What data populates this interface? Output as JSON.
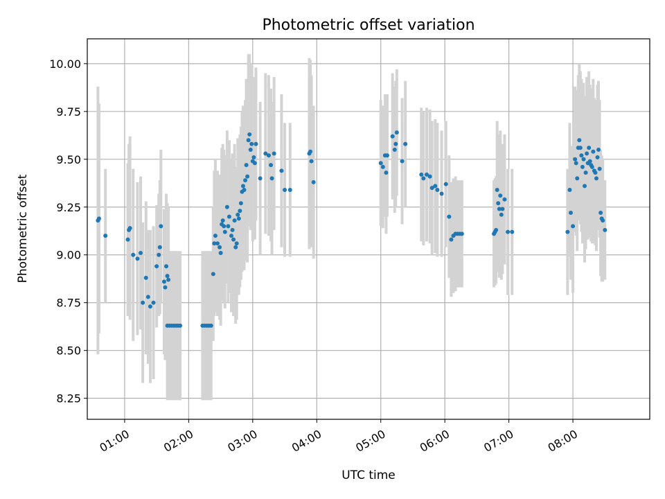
{
  "chart_data": {
    "type": "scatter",
    "title": "Photometric offset variation",
    "xlabel": "UTC time",
    "ylabel": "Photometric offset",
    "x_unit": "UTC time (HH:MM)",
    "xlim": [
      "00:25",
      "09:12"
    ],
    "ylim": [
      8.14,
      10.13
    ],
    "grid": true,
    "x_ticks": [
      "01:00",
      "02:00",
      "03:00",
      "04:00",
      "05:00",
      "06:00",
      "07:00",
      "08:00"
    ],
    "y_ticks": [
      "8.25",
      "8.50",
      "8.75",
      "9.00",
      "9.25",
      "9.50",
      "9.75",
      "10.00"
    ],
    "colors": {
      "points": "#1f77b4",
      "errorbars": "#d3d3d3",
      "grid": "#b0b0b0"
    },
    "series": [
      {
        "points": [
          {
            "x": "00:35",
            "y": 9.18,
            "err": 0.7
          },
          {
            "x": "00:36",
            "y": 9.19,
            "err": 0.6
          },
          {
            "x": "00:42",
            "y": 9.1,
            "err": 0.35
          },
          {
            "x": "01:03",
            "y": 9.08,
            "err": 0.4
          },
          {
            "x": "01:04",
            "y": 9.13,
            "err": 0.45
          },
          {
            "x": "01:05",
            "y": 9.14,
            "err": 0.48
          },
          {
            "x": "01:08",
            "y": 9.0,
            "err": 0.45
          },
          {
            "x": "01:12",
            "y": 8.98,
            "err": 0.4
          },
          {
            "x": "01:15",
            "y": 9.01,
            "err": 0.4
          },
          {
            "x": "01:17",
            "y": 8.75,
            "err": 0.42
          },
          {
            "x": "01:20",
            "y": 8.88,
            "err": 0.4
          },
          {
            "x": "01:22",
            "y": 8.78,
            "err": 0.35
          },
          {
            "x": "01:24",
            "y": 8.73,
            "err": 0.4
          },
          {
            "x": "01:27",
            "y": 8.75,
            "err": 0.4
          },
          {
            "x": "01:30",
            "y": 8.94,
            "err": 0.32
          },
          {
            "x": "01:32",
            "y": 9.0,
            "err": 0.32
          },
          {
            "x": "01:33",
            "y": 9.04,
            "err": 0.35
          },
          {
            "x": "01:34",
            "y": 9.15,
            "err": 0.4
          },
          {
            "x": "01:37",
            "y": 8.86,
            "err": 0.38
          },
          {
            "x": "01:38",
            "y": 8.83,
            "err": 0.38
          },
          {
            "x": "01:39",
            "y": 8.94,
            "err": 0.38
          },
          {
            "x": "01:40",
            "y": 8.89,
            "err": 0.38
          },
          {
            "x": "01:41",
            "y": 8.87,
            "err": 0.38
          },
          {
            "x": "01:40",
            "y": 8.63,
            "err": 0.39
          },
          {
            "x": "01:42",
            "y": 8.63,
            "err": 0.39
          },
          {
            "x": "01:44",
            "y": 8.63,
            "err": 0.39
          },
          {
            "x": "01:46",
            "y": 8.63,
            "err": 0.39
          },
          {
            "x": "01:48",
            "y": 8.63,
            "err": 0.39
          },
          {
            "x": "01:50",
            "y": 8.63,
            "err": 0.39
          },
          {
            "x": "01:52",
            "y": 8.63,
            "err": 0.39
          },
          {
            "x": "02:13",
            "y": 8.63,
            "err": 0.39
          },
          {
            "x": "02:15",
            "y": 8.63,
            "err": 0.39
          },
          {
            "x": "02:17",
            "y": 8.63,
            "err": 0.39
          },
          {
            "x": "02:19",
            "y": 8.63,
            "err": 0.39
          },
          {
            "x": "02:21",
            "y": 8.63,
            "err": 0.39
          },
          {
            "x": "02:23",
            "y": 8.9,
            "err": 0.35
          },
          {
            "x": "02:24",
            "y": 9.06,
            "err": 0.38
          },
          {
            "x": "02:25",
            "y": 9.1,
            "err": 0.4
          },
          {
            "x": "02:27",
            "y": 9.06,
            "err": 0.38
          },
          {
            "x": "02:29",
            "y": 9.04,
            "err": 0.38
          },
          {
            "x": "02:30",
            "y": 9.01,
            "err": 0.38
          },
          {
            "x": "02:31",
            "y": 9.16,
            "err": 0.4
          },
          {
            "x": "02:32",
            "y": 9.18,
            "err": 0.4
          },
          {
            "x": "02:33",
            "y": 9.15,
            "err": 0.4
          },
          {
            "x": "02:34",
            "y": 9.12,
            "err": 0.4
          },
          {
            "x": "02:36",
            "y": 9.25,
            "err": 0.4
          },
          {
            "x": "02:37",
            "y": 9.15,
            "err": 0.4
          },
          {
            "x": "02:38",
            "y": 9.2,
            "err": 0.4
          },
          {
            "x": "02:40",
            "y": 9.1,
            "err": 0.4
          },
          {
            "x": "02:41",
            "y": 9.13,
            "err": 0.4
          },
          {
            "x": "02:42",
            "y": 9.08,
            "err": 0.4
          },
          {
            "x": "02:43",
            "y": 9.18,
            "err": 0.4
          },
          {
            "x": "02:44",
            "y": 9.04,
            "err": 0.4
          },
          {
            "x": "02:45",
            "y": 9.06,
            "err": 0.4
          },
          {
            "x": "02:46",
            "y": 9.21,
            "err": 0.4
          },
          {
            "x": "02:47",
            "y": 9.19,
            "err": 0.4
          },
          {
            "x": "02:48",
            "y": 9.23,
            "err": 0.4
          },
          {
            "x": "02:49",
            "y": 9.27,
            "err": 0.4
          },
          {
            "x": "02:50",
            "y": 9.33,
            "err": 0.42
          },
          {
            "x": "02:51",
            "y": 9.36,
            "err": 0.42
          },
          {
            "x": "02:52",
            "y": 9.34,
            "err": 0.42
          },
          {
            "x": "02:53",
            "y": 9.39,
            "err": 0.42
          },
          {
            "x": "02:54",
            "y": 9.47,
            "err": 0.45
          },
          {
            "x": "02:55",
            "y": 9.41,
            "err": 0.45
          },
          {
            "x": "02:56",
            "y": 9.6,
            "err": 0.45
          },
          {
            "x": "02:57",
            "y": 9.63,
            "err": 0.42
          },
          {
            "x": "02:58",
            "y": 9.55,
            "err": 0.42
          },
          {
            "x": "02:59",
            "y": 9.58,
            "err": 0.42
          },
          {
            "x": "03:00",
            "y": 9.49,
            "err": 0.42
          },
          {
            "x": "03:01",
            "y": 9.51,
            "err": 0.42
          },
          {
            "x": "03:02",
            "y": 9.48,
            "err": 0.4
          },
          {
            "x": "03:03",
            "y": 9.58,
            "err": 0.4
          },
          {
            "x": "03:07",
            "y": 9.4,
            "err": 0.4
          },
          {
            "x": "03:12",
            "y": 9.53,
            "err": 0.42
          },
          {
            "x": "03:15",
            "y": 9.52,
            "err": 0.42
          },
          {
            "x": "03:17",
            "y": 9.47,
            "err": 0.4
          },
          {
            "x": "03:18",
            "y": 9.4,
            "err": 0.4
          },
          {
            "x": "03:20",
            "y": 9.53,
            "err": 0.4
          },
          {
            "x": "03:27",
            "y": 9.44,
            "err": 0.4
          },
          {
            "x": "03:30",
            "y": 9.34,
            "err": 0.35
          },
          {
            "x": "03:35",
            "y": 9.34,
            "err": 0.35
          },
          {
            "x": "03:53",
            "y": 9.53,
            "err": 0.5
          },
          {
            "x": "03:54",
            "y": 9.54,
            "err": 0.48
          },
          {
            "x": "03:55",
            "y": 9.49,
            "err": 0.45
          },
          {
            "x": "03:57",
            "y": 9.38,
            "err": 0.4
          },
          {
            "x": "05:00",
            "y": 9.48,
            "err": 0.33
          },
          {
            "x": "05:02",
            "y": 9.46,
            "err": 0.32
          },
          {
            "x": "05:04",
            "y": 9.52,
            "err": 0.32
          },
          {
            "x": "05:05",
            "y": 9.43,
            "err": 0.32
          },
          {
            "x": "05:06",
            "y": 9.52,
            "err": 0.32
          },
          {
            "x": "05:11",
            "y": 9.62,
            "err": 0.33
          },
          {
            "x": "05:13",
            "y": 9.55,
            "err": 0.33
          },
          {
            "x": "05:14",
            "y": 9.58,
            "err": 0.33
          },
          {
            "x": "05:15",
            "y": 9.64,
            "err": 0.33
          },
          {
            "x": "05:20",
            "y": 9.49,
            "err": 0.33
          },
          {
            "x": "05:23",
            "y": 9.58,
            "err": 0.33
          },
          {
            "x": "05:38",
            "y": 9.42,
            "err": 0.35
          },
          {
            "x": "05:40",
            "y": 9.4,
            "err": 0.35
          },
          {
            "x": "05:43",
            "y": 9.42,
            "err": 0.35
          },
          {
            "x": "05:46",
            "y": 9.41,
            "err": 0.35
          },
          {
            "x": "05:48",
            "y": 9.35,
            "err": 0.35
          },
          {
            "x": "05:51",
            "y": 9.36,
            "err": 0.35
          },
          {
            "x": "05:53",
            "y": 9.34,
            "err": 0.35
          },
          {
            "x": "05:57",
            "y": 9.32,
            "err": 0.33
          },
          {
            "x": "06:01",
            "y": 9.37,
            "err": 0.33
          },
          {
            "x": "06:04",
            "y": 9.2,
            "err": 0.32
          },
          {
            "x": "06:06",
            "y": 9.08,
            "err": 0.3
          },
          {
            "x": "06:08",
            "y": 9.1,
            "err": 0.3
          },
          {
            "x": "06:10",
            "y": 9.11,
            "err": 0.3
          },
          {
            "x": "06:12",
            "y": 9.11,
            "err": 0.28
          },
          {
            "x": "06:14",
            "y": 9.11,
            "err": 0.28
          },
          {
            "x": "06:16",
            "y": 9.11,
            "err": 0.28
          },
          {
            "x": "06:46",
            "y": 9.11,
            "err": 0.28
          },
          {
            "x": "06:47",
            "y": 9.12,
            "err": 0.28
          },
          {
            "x": "06:48",
            "y": 9.13,
            "err": 0.28
          },
          {
            "x": "06:49",
            "y": 9.34,
            "err": 0.36
          },
          {
            "x": "06:50",
            "y": 9.27,
            "err": 0.36
          },
          {
            "x": "06:51",
            "y": 9.24,
            "err": 0.36
          },
          {
            "x": "06:52",
            "y": 9.31,
            "err": 0.34
          },
          {
            "x": "06:53",
            "y": 9.21,
            "err": 0.34
          },
          {
            "x": "06:54",
            "y": 9.24,
            "err": 0.34
          },
          {
            "x": "06:56",
            "y": 9.29,
            "err": 0.34
          },
          {
            "x": "06:59",
            "y": 9.12,
            "err": 0.33
          },
          {
            "x": "07:03",
            "y": 9.12,
            "err": 0.33
          },
          {
            "x": "07:55",
            "y": 9.12,
            "err": 0.33
          },
          {
            "x": "07:57",
            "y": 9.34,
            "err": 0.35
          },
          {
            "x": "07:58",
            "y": 9.22,
            "err": 0.35
          },
          {
            "x": "08:00",
            "y": 9.15,
            "err": 0.35
          },
          {
            "x": "08:02",
            "y": 9.5,
            "err": 0.38
          },
          {
            "x": "08:03",
            "y": 9.48,
            "err": 0.38
          },
          {
            "x": "08:04",
            "y": 9.4,
            "err": 0.38
          },
          {
            "x": "08:05",
            "y": 9.56,
            "err": 0.38
          },
          {
            "x": "08:06",
            "y": 9.6,
            "err": 0.4
          },
          {
            "x": "08:07",
            "y": 9.56,
            "err": 0.4
          },
          {
            "x": "08:08",
            "y": 9.52,
            "err": 0.4
          },
          {
            "x": "08:09",
            "y": 9.46,
            "err": 0.4
          },
          {
            "x": "08:10",
            "y": 9.5,
            "err": 0.4
          },
          {
            "x": "08:11",
            "y": 9.36,
            "err": 0.4
          },
          {
            "x": "08:12",
            "y": 9.43,
            "err": 0.4
          },
          {
            "x": "08:13",
            "y": 9.53,
            "err": 0.4
          },
          {
            "x": "08:14",
            "y": 9.48,
            "err": 0.4
          },
          {
            "x": "08:15",
            "y": 9.56,
            "err": 0.4
          },
          {
            "x": "08:16",
            "y": 9.49,
            "err": 0.4
          },
          {
            "x": "08:17",
            "y": 9.47,
            "err": 0.4
          },
          {
            "x": "08:18",
            "y": 9.46,
            "err": 0.4
          },
          {
            "x": "08:19",
            "y": 9.54,
            "err": 0.38
          },
          {
            "x": "08:20",
            "y": 9.44,
            "err": 0.38
          },
          {
            "x": "08:21",
            "y": 9.43,
            "err": 0.38
          },
          {
            "x": "08:22",
            "y": 9.4,
            "err": 0.38
          },
          {
            "x": "08:23",
            "y": 9.51,
            "err": 0.38
          },
          {
            "x": "08:24",
            "y": 9.55,
            "err": 0.36
          },
          {
            "x": "08:25",
            "y": 9.45,
            "err": 0.36
          },
          {
            "x": "08:26",
            "y": 9.22,
            "err": 0.33
          },
          {
            "x": "08:27",
            "y": 9.19,
            "err": 0.33
          },
          {
            "x": "08:28",
            "y": 9.18,
            "err": 0.32
          },
          {
            "x": "08:30",
            "y": 9.13,
            "err": 0.26
          }
        ]
      }
    ]
  }
}
